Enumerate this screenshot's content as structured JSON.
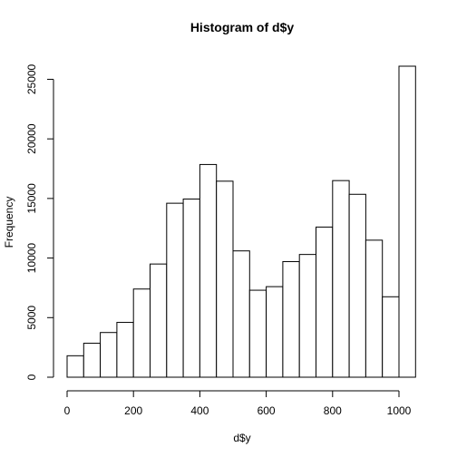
{
  "chart_data": {
    "type": "bar",
    "title": "Histogram of d$y",
    "xlabel": "d$y",
    "ylabel": "Frequency",
    "bin_width": 50,
    "bins": [
      {
        "start": 0,
        "end": 50,
        "count": 1800
      },
      {
        "start": 50,
        "end": 100,
        "count": 2850
      },
      {
        "start": 100,
        "end": 150,
        "count": 3750
      },
      {
        "start": 150,
        "end": 200,
        "count": 4600
      },
      {
        "start": 200,
        "end": 250,
        "count": 7400
      },
      {
        "start": 250,
        "end": 300,
        "count": 9500
      },
      {
        "start": 300,
        "end": 350,
        "count": 14600
      },
      {
        "start": 350,
        "end": 400,
        "count": 14950
      },
      {
        "start": 400,
        "end": 450,
        "count": 17850
      },
      {
        "start": 450,
        "end": 500,
        "count": 16450
      },
      {
        "start": 500,
        "end": 550,
        "count": 10600
      },
      {
        "start": 550,
        "end": 600,
        "count": 7300
      },
      {
        "start": 600,
        "end": 650,
        "count": 7600
      },
      {
        "start": 650,
        "end": 700,
        "count": 9700
      },
      {
        "start": 700,
        "end": 750,
        "count": 10300
      },
      {
        "start": 750,
        "end": 800,
        "count": 12600
      },
      {
        "start": 800,
        "end": 850,
        "count": 16500
      },
      {
        "start": 850,
        "end": 900,
        "count": 15350
      },
      {
        "start": 900,
        "end": 950,
        "count": 11500
      },
      {
        "start": 950,
        "end": 1000,
        "count": 6750
      },
      {
        "start": 1000,
        "end": 1050,
        "count": 26100
      }
    ],
    "xlim": [
      0,
      1050
    ],
    "ylim": [
      0,
      26100
    ],
    "x_ticks": [
      0,
      200,
      400,
      600,
      800,
      1000
    ],
    "y_ticks": [
      0,
      5000,
      10000,
      15000,
      20000,
      25000
    ],
    "grid": false,
    "bar_fill": "#ffffff",
    "bar_stroke": "#000000"
  }
}
